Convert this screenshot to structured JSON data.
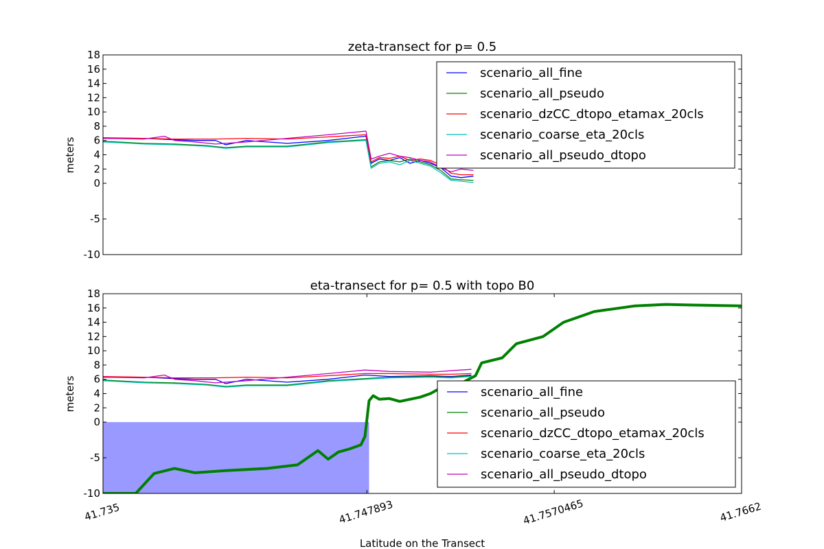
{
  "figure": {
    "xlabel": "Latitude on the Transect"
  },
  "legend_labels": [
    "scenario_all_fine",
    "scenario_all_pseudo",
    "scenario_dzCC_dtopo_etamax_20cls",
    "scenario_coarse_eta_20cls",
    "scenario_all_pseudo_dtopo"
  ],
  "colors": {
    "scenario_all_fine": "#0000ff",
    "scenario_all_pseudo": "#008000",
    "scenario_dzCC_dtopo_etamax_20cls": "#ff0000",
    "scenario_coarse_eta_20cls": "#00bfbf",
    "scenario_all_pseudo_dtopo": "#bf00bf",
    "water_fill": "#9999ff",
    "topo": "#008000"
  },
  "chart_data": [
    {
      "type": "line",
      "title": "zeta-transect for p= 0.5",
      "xlabel": "",
      "ylabel": "meters",
      "xlim": [
        41.735,
        41.7662
      ],
      "ylim": [
        -10,
        18
      ],
      "yticks": [
        "-10",
        "-5",
        "0",
        "2",
        "4",
        "6",
        "8",
        "10",
        "12",
        "14",
        "16",
        "18"
      ],
      "ytick_values": [
        -10,
        -5,
        0,
        2,
        4,
        6,
        8,
        10,
        12,
        14,
        16,
        18
      ],
      "xticks": [],
      "legend_position": "upper right",
      "series": [
        {
          "name": "scenario_all_fine",
          "x": [
            41.735,
            41.737,
            41.7385,
            41.7395,
            41.7405,
            41.741,
            41.742,
            41.744,
            41.746,
            41.7478,
            41.74785,
            41.7481,
            41.7485,
            41.749,
            41.7495,
            41.75,
            41.7505,
            41.751,
            41.7515,
            41.752,
            41.7525,
            41.7531
          ],
          "y": [
            6.3,
            6.3,
            6.1,
            6.0,
            6.0,
            5.4,
            6.0,
            5.6,
            6.0,
            6.6,
            6.6,
            2.8,
            3.4,
            3.2,
            3.6,
            2.8,
            3.2,
            2.8,
            2.2,
            1.0,
            0.8,
            1.0
          ]
        },
        {
          "name": "scenario_all_pseudo",
          "x": [
            41.735,
            41.737,
            41.7385,
            41.74,
            41.741,
            41.742,
            41.744,
            41.746,
            41.7478,
            41.74785,
            41.7481,
            41.7485,
            41.749,
            41.7495,
            41.75,
            41.7505,
            41.751,
            41.7515,
            41.752,
            41.7525,
            41.7531
          ],
          "y": [
            5.9,
            5.6,
            5.5,
            5.3,
            5.0,
            5.2,
            5.2,
            5.8,
            6.1,
            6.1,
            2.3,
            3.0,
            3.2,
            3.0,
            3.4,
            3.0,
            2.6,
            1.8,
            0.6,
            0.5,
            0.4
          ]
        },
        {
          "name": "scenario_dzCC_dtopo_etamax_20cls",
          "x": [
            41.735,
            41.737,
            41.7385,
            41.7395,
            41.7405,
            41.742,
            41.744,
            41.746,
            41.7478,
            41.74785,
            41.7481,
            41.7485,
            41.749,
            41.7495,
            41.75,
            41.7505,
            41.751,
            41.7515,
            41.752,
            41.7525,
            41.7531
          ],
          "y": [
            6.4,
            6.3,
            6.2,
            6.2,
            6.2,
            6.3,
            6.2,
            6.5,
            6.8,
            6.8,
            3.0,
            3.6,
            3.5,
            3.8,
            3.2,
            3.4,
            3.2,
            2.6,
            1.4,
            1.2,
            1.2
          ]
        },
        {
          "name": "scenario_coarse_eta_20cls",
          "x": [
            41.735,
            41.737,
            41.7385,
            41.74,
            41.741,
            41.742,
            41.744,
            41.746,
            41.7478,
            41.74785,
            41.7481,
            41.7485,
            41.749,
            41.7495,
            41.75,
            41.7505,
            41.751,
            41.7515,
            41.752,
            41.7525,
            41.7531
          ],
          "y": [
            5.8,
            5.5,
            5.4,
            5.2,
            4.9,
            5.1,
            5.1,
            5.7,
            6.0,
            6.0,
            2.1,
            2.8,
            3.0,
            2.6,
            3.2,
            2.8,
            2.4,
            1.5,
            0.4,
            0.3,
            0.1
          ]
        },
        {
          "name": "scenario_all_pseudo_dtopo",
          "x": [
            41.735,
            41.737,
            41.738,
            41.7385,
            41.7395,
            41.7405,
            41.742,
            41.744,
            41.746,
            41.7478,
            41.74785,
            41.7481,
            41.7485,
            41.749,
            41.7495,
            41.75,
            41.7505,
            41.751,
            41.7515,
            41.752,
            41.7525,
            41.7531
          ],
          "y": [
            6.3,
            6.2,
            6.6,
            6.0,
            5.8,
            5.5,
            5.8,
            6.3,
            6.8,
            7.3,
            7.3,
            3.4,
            3.8,
            4.2,
            3.8,
            3.6,
            3.2,
            3.0,
            2.2,
            1.6,
            2.0,
            1.8
          ]
        }
      ]
    },
    {
      "type": "line",
      "title": "eta-transect for p= 0.5 with topo B0",
      "xlabel": "Latitude on the Transect",
      "ylabel": "meters",
      "xlim": [
        41.735,
        41.7662
      ],
      "ylim": [
        -10,
        18
      ],
      "yticks": [
        "-10",
        "-5",
        "0",
        "2",
        "4",
        "6",
        "8",
        "10",
        "12",
        "14",
        "16",
        "18"
      ],
      "ytick_values": [
        -10,
        -5,
        0,
        2,
        4,
        6,
        8,
        10,
        12,
        14,
        16,
        18
      ],
      "xticks": [
        "41.735",
        "41.747893",
        "41.7570465",
        "41.7662"
      ],
      "xtick_values": [
        41.735,
        41.747893,
        41.7570465,
        41.7662
      ],
      "legend_position": "lower right",
      "series": [
        {
          "name": "scenario_all_fine",
          "x": [
            41.735,
            41.737,
            41.7385,
            41.7395,
            41.7405,
            41.741,
            41.742,
            41.744,
            41.746,
            41.7478,
            41.749,
            41.751,
            41.752,
            41.753
          ],
          "y": [
            6.3,
            6.3,
            6.1,
            6.0,
            6.0,
            5.4,
            6.0,
            5.6,
            6.0,
            6.6,
            6.4,
            6.5,
            6.4,
            6.6
          ]
        },
        {
          "name": "scenario_all_pseudo",
          "x": [
            41.735,
            41.737,
            41.7385,
            41.74,
            41.741,
            41.742,
            41.744,
            41.746,
            41.7478,
            41.749,
            41.751,
            41.752,
            41.753
          ],
          "y": [
            5.9,
            5.6,
            5.5,
            5.3,
            5.0,
            5.2,
            5.2,
            5.8,
            6.1,
            6.3,
            6.4,
            6.3,
            6.5
          ]
        },
        {
          "name": "scenario_dzCC_dtopo_etamax_20cls",
          "x": [
            41.735,
            41.737,
            41.7385,
            41.7395,
            41.7405,
            41.742,
            41.744,
            41.746,
            41.7478,
            41.749,
            41.751,
            41.752,
            41.753
          ],
          "y": [
            6.4,
            6.3,
            6.2,
            6.2,
            6.2,
            6.3,
            6.2,
            6.5,
            6.8,
            6.8,
            6.7,
            6.7,
            6.8
          ]
        },
        {
          "name": "scenario_coarse_eta_20cls",
          "x": [
            41.735,
            41.737,
            41.7385,
            41.74,
            41.741,
            41.742,
            41.744,
            41.746,
            41.7478,
            41.749,
            41.751,
            41.752,
            41.753
          ],
          "y": [
            5.8,
            5.5,
            5.4,
            5.2,
            4.9,
            5.1,
            5.1,
            5.7,
            6.0,
            6.2,
            6.3,
            6.2,
            6.4
          ]
        },
        {
          "name": "scenario_all_pseudo_dtopo",
          "x": [
            41.735,
            41.737,
            41.738,
            41.7385,
            41.7395,
            41.7405,
            41.742,
            41.744,
            41.746,
            41.7478,
            41.749,
            41.751,
            41.752,
            41.753
          ],
          "y": [
            6.3,
            6.2,
            6.6,
            6.0,
            5.8,
            5.5,
            5.8,
            6.3,
            6.8,
            7.3,
            7.1,
            7.0,
            7.2,
            7.4
          ]
        }
      ],
      "topo": {
        "x": [
          41.735,
          41.7366,
          41.7375,
          41.7385,
          41.7395,
          41.741,
          41.743,
          41.7445,
          41.7455,
          41.746,
          41.7465,
          41.747,
          41.7476,
          41.7478,
          41.748,
          41.7482,
          41.7485,
          41.749,
          41.7495,
          41.75,
          41.7505,
          41.751,
          41.7515,
          41.7522,
          41.7526,
          41.7532,
          41.7535,
          41.7545,
          41.7552,
          41.7565,
          41.7575,
          41.759,
          41.761,
          41.7625,
          41.764,
          41.7662
        ],
        "y": [
          -10,
          -10,
          -7.2,
          -6.5,
          -7.1,
          -6.8,
          -6.5,
          -6.0,
          -4.0,
          -5.2,
          -4.2,
          -3.8,
          -3.2,
          -2.0,
          3.0,
          3.7,
          3.2,
          3.3,
          2.9,
          3.2,
          3.5,
          4.0,
          4.8,
          5.2,
          5.6,
          6.5,
          8.3,
          9.0,
          11.0,
          12.0,
          14.0,
          15.5,
          16.3,
          16.5,
          16.4,
          16.3
        ]
      },
      "water_fill": {
        "x": [
          41.735,
          41.748
        ],
        "y0": 0
      }
    }
  ]
}
